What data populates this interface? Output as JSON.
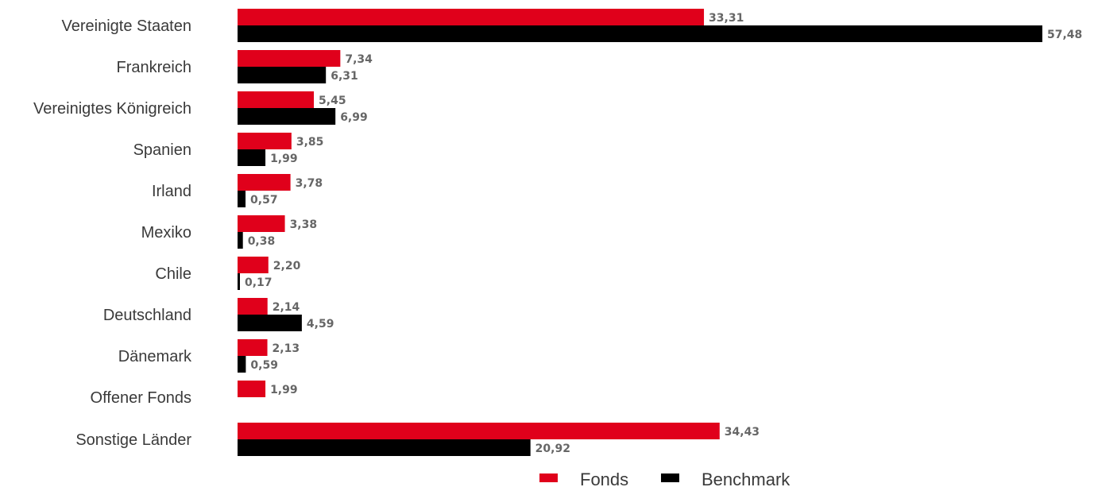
{
  "chart_data": {
    "type": "bar",
    "orientation": "horizontal",
    "categories": [
      "Vereinigte Staaten",
      "Frankreich",
      "Vereinigtes Königreich",
      "Spanien",
      "Irland",
      "Mexiko",
      "Chile",
      "Deutschland",
      "Dänemark",
      "Offener Fonds",
      "Sonstige Länder"
    ],
    "series": [
      {
        "name": "Fonds",
        "color": "#e0001b",
        "values": [
          33.31,
          7.34,
          5.45,
          3.85,
          3.78,
          3.38,
          2.2,
          2.14,
          2.13,
          1.99,
          34.43
        ],
        "labels": [
          "33,31",
          "7,34",
          "5,45",
          "3,85",
          "3,78",
          "3,38",
          "2,20",
          "2,14",
          "2,13",
          "1,99",
          "34,43"
        ]
      },
      {
        "name": "Benchmark",
        "color": "#000000",
        "values": [
          57.48,
          6.31,
          6.99,
          1.99,
          0.57,
          0.38,
          0.17,
          4.59,
          0.59,
          null,
          20.92
        ],
        "labels": [
          "57,48",
          "6,31",
          "6,99",
          "1,99",
          "0,57",
          "0,38",
          "0,17",
          "4,59",
          "0,59",
          "",
          "20,92"
        ]
      }
    ],
    "xlim": [
      0,
      57.48
    ],
    "grid": false,
    "legend_position": "bottom-center"
  }
}
